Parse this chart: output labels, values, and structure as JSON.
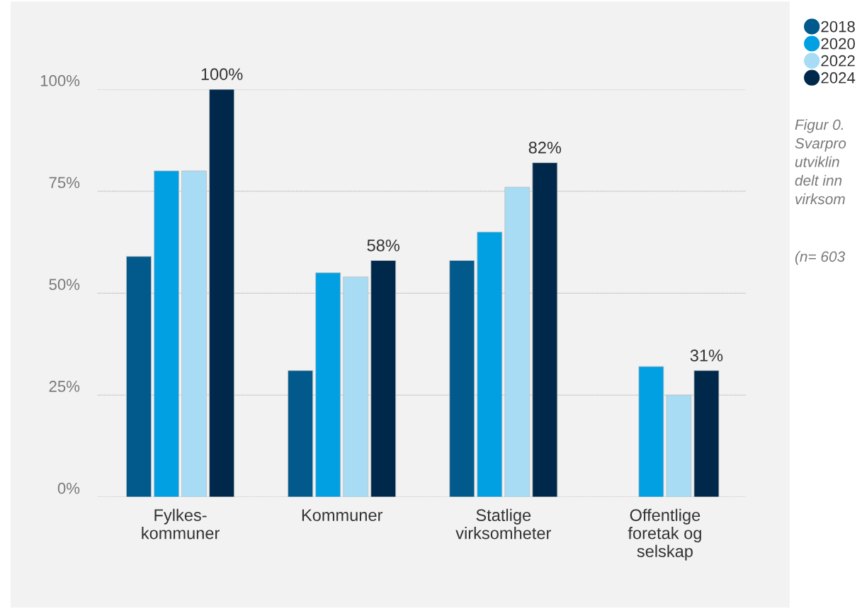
{
  "chart_data": {
    "type": "bar",
    "categories": [
      "Fylkes-\nkommuner",
      "Kommuner",
      "Statlige\nvirksomheter",
      "Offentlige\nforetak og\nselskap"
    ],
    "series": [
      {
        "name": "2018",
        "color": "#01598c",
        "values": [
          59,
          31,
          58,
          null
        ]
      },
      {
        "name": "2020",
        "color": "#00a0e2",
        "values": [
          80,
          55,
          65,
          32
        ]
      },
      {
        "name": "2022",
        "color": "#a7dcf4",
        "values": [
          80,
          54,
          76,
          25
        ]
      },
      {
        "name": "2024",
        "color": "#00284b",
        "values": [
          100,
          58,
          82,
          31
        ],
        "value_labels": [
          "100%",
          "58%",
          "82%",
          "31%"
        ]
      }
    ],
    "ylim": [
      0,
      100
    ],
    "yticks": [
      {
        "value": 0,
        "label": "0%"
      },
      {
        "value": 25,
        "label": "25%"
      },
      {
        "value": 50,
        "label": "50%"
      },
      {
        "value": 75,
        "label": "75%"
      },
      {
        "value": 100,
        "label": "100%"
      }
    ],
    "grid": "y",
    "legend": "top right",
    "marker": "circle",
    "annotations": [
      "Figur 0.\nSvarpro\nutviklin\ndelt inn\nvirksom",
      "(n= 603"
    ]
  }
}
